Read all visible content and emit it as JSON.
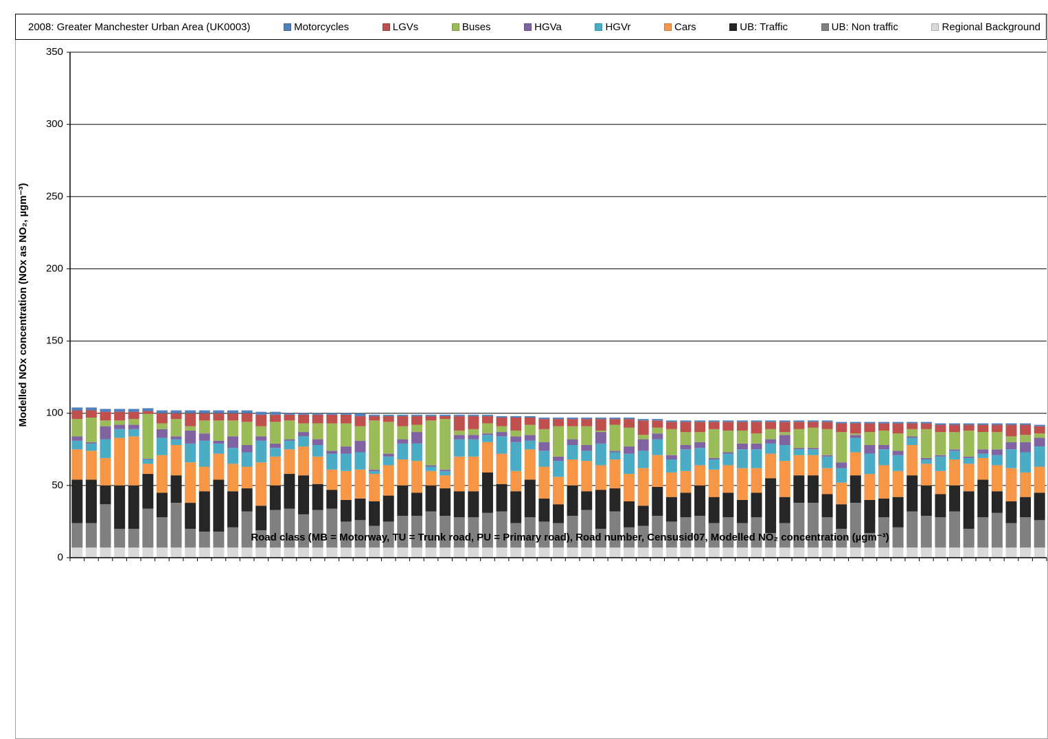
{
  "chart_data": {
    "type": "stacked_bar",
    "title": "2008: Greater Manchester Urban Area (UK0003)",
    "x_label": "Road class  (MB = Motorway, TU = Trunk road, PU = Primary road), Road number, Censusid07, Modelled NO₂ concentration (µgm⁻³)",
    "y_label": "Modelled NOx concentration  (NOx as NO₂, µgm⁻³)",
    "categories": [
      null,
      null,
      null,
      null,
      null,
      null,
      null,
      null,
      null,
      null,
      null,
      null,
      null,
      null,
      null,
      null,
      null,
      null,
      null,
      null,
      null,
      null,
      null,
      null,
      null,
      null,
      null,
      null,
      null,
      null,
      null,
      null,
      null,
      null,
      null,
      null,
      null,
      null,
      null,
      null,
      null,
      null,
      null,
      null,
      null,
      null,
      null,
      null,
      null,
      null,
      null,
      null,
      null,
      null,
      null,
      null,
      null,
      null,
      null,
      null,
      null,
      null,
      null,
      null,
      null,
      null,
      null,
      null,
      null
    ],
    "ylim": [
      0,
      350
    ],
    "yticks": [
      0,
      50,
      100,
      150,
      200,
      250,
      300,
      350
    ],
    "grid": true,
    "legend": "top",
    "series": [
      {
        "name": "Motorcycles",
        "color": "#4f81bd",
        "values": [
          2,
          2,
          2,
          2,
          2,
          2,
          2,
          2,
          2,
          2,
          2,
          2,
          2,
          2,
          2,
          1,
          1,
          1,
          1,
          1,
          2,
          1,
          1,
          1,
          1,
          1,
          1,
          1,
          1,
          1,
          1,
          1,
          1,
          1,
          1,
          1,
          1,
          1,
          1,
          1,
          1,
          1,
          1,
          1,
          1,
          1,
          1,
          1,
          1,
          1,
          1,
          1,
          1,
          1,
          1,
          1,
          1,
          1,
          1,
          1,
          1,
          1,
          1,
          1,
          1,
          1,
          1,
          1,
          1
        ]
      },
      {
        "name": "LGVs",
        "color": "#c0504d",
        "values": [
          6,
          5,
          6,
          6,
          5,
          2,
          7,
          4,
          9,
          5,
          5,
          5,
          6,
          8,
          5,
          4,
          6,
          6,
          6,
          6,
          7,
          3,
          4,
          7,
          6,
          3,
          2,
          10,
          9,
          5,
          6,
          9,
          5,
          7,
          5,
          5,
          5,
          8,
          4,
          6,
          10,
          5,
          5,
          7,
          7,
          5,
          6,
          6,
          8,
          5,
          7,
          5,
          4,
          5,
          6,
          7,
          6,
          5,
          7,
          4,
          4,
          5,
          5,
          4,
          5,
          5,
          8,
          7,
          5
        ]
      },
      {
        "name": "Buses",
        "color": "#9bbb59",
        "values": [
          12,
          17,
          4,
          3,
          4,
          31,
          4,
          12,
          3,
          9,
          14,
          11,
          16,
          7,
          15,
          13,
          6,
          11,
          19,
          16,
          10,
          34,
          22,
          9,
          5,
          31,
          35,
          3,
          4,
          7,
          4,
          4,
          7,
          9,
          21,
          9,
          13,
          1,
          18,
          13,
          3,
          4,
          18,
          9,
          7,
          20,
          15,
          9,
          7,
          7,
          2,
          13,
          14,
          18,
          21,
          1,
          9,
          10,
          12,
          5,
          20,
          16,
          12,
          18,
          12,
          12,
          4,
          5,
          3
        ]
      },
      {
        "name": "HGVa",
        "color": "#8064a2",
        "values": [
          3,
          1,
          9,
          3,
          3,
          0.5,
          6,
          2,
          9,
          5,
          2,
          8,
          5,
          3,
          3,
          1,
          3,
          4,
          2,
          5,
          8,
          1,
          2,
          3,
          8,
          1,
          1,
          3,
          3,
          1,
          3,
          4,
          4,
          6,
          3,
          4,
          4,
          8,
          1,
          5,
          8,
          4,
          3,
          3,
          4,
          1,
          1,
          4,
          4,
          3,
          7,
          1,
          1,
          1,
          4,
          2,
          6,
          3,
          3,
          1,
          1,
          1,
          1,
          1,
          3,
          4,
          5,
          7,
          6
        ]
      },
      {
        "name": "HGVr",
        "color": "#4bacc6",
        "values": [
          6,
          5,
          13,
          6,
          5,
          3,
          12,
          4,
          13,
          18,
          7,
          11,
          10,
          15,
          6,
          6,
          7,
          8,
          11,
          12,
          12,
          2,
          6,
          11,
          12,
          3,
          3,
          12,
          12,
          5,
          12,
          20,
          6,
          11,
          11,
          10,
          7,
          15,
          5,
          14,
          12,
          11,
          9,
          15,
          12,
          7,
          8,
          13,
          13,
          7,
          11,
          4,
          4,
          8,
          10,
          10,
          14,
          11,
          11,
          5,
          3,
          10,
          6,
          4,
          3,
          7,
          13,
          14,
          14
        ]
      },
      {
        "name": "Cars",
        "color": "#f79646",
        "values": [
          21,
          20,
          19,
          33,
          34,
          7,
          26,
          21,
          28,
          17,
          18,
          19,
          15,
          30,
          20,
          17,
          20,
          19,
          14,
          20,
          20,
          19,
          21,
          18,
          22,
          10,
          9,
          24,
          24,
          21,
          21,
          14,
          21,
          22,
          19,
          18,
          21,
          17,
          20,
          19,
          26,
          22,
          17,
          15,
          14,
          19,
          19,
          22,
          17,
          17,
          25,
          14,
          14,
          18,
          15,
          16,
          18,
          23,
          18,
          21,
          15,
          16,
          18,
          19,
          15,
          18,
          23,
          17,
          18
        ]
      },
      {
        "name": "UB: Traffic",
        "color": "#262626",
        "values": [
          30,
          30,
          13,
          30,
          30,
          24,
          17,
          19,
          18,
          28,
          36,
          25,
          16,
          17,
          17,
          24,
          27,
          18,
          13,
          15,
          15,
          17,
          18,
          21,
          16,
          18,
          19,
          18,
          18,
          28,
          19,
          22,
          26,
          16,
          13,
          21,
          13,
          27,
          16,
          18,
          14,
          20,
          17,
          17,
          21,
          18,
          17,
          16,
          17,
          38,
          18,
          19,
          19,
          16,
          17,
          19,
          23,
          13,
          21,
          25,
          21,
          16,
          18,
          26,
          26,
          15,
          15,
          14,
          19
        ]
      },
      {
        "name": "UB: Non traffic",
        "color": "#808080",
        "values": [
          17,
          17,
          30,
          13,
          13,
          27,
          21,
          31,
          13,
          11,
          11,
          14,
          25,
          12,
          26,
          27,
          23,
          26,
          27,
          18,
          19,
          15,
          18,
          22,
          22,
          25,
          22,
          21,
          21,
          24,
          25,
          17,
          21,
          18,
          17,
          22,
          26,
          13,
          25,
          14,
          15,
          22,
          18,
          21,
          22,
          17,
          21,
          17,
          21,
          10,
          17,
          31,
          31,
          21,
          13,
          31,
          10,
          21,
          14,
          25,
          22,
          21,
          25,
          13,
          21,
          24,
          17,
          21,
          19
        ]
      },
      {
        "name": "Regional Background",
        "color": "#d9d9d9",
        "values": [
          7,
          7,
          7,
          7,
          7,
          7,
          7,
          7,
          7,
          7,
          7,
          7,
          7,
          7,
          7,
          7,
          7,
          7,
          7,
          7,
          7,
          7,
          7,
          7,
          7,
          7,
          7,
          7,
          7,
          7,
          7,
          7,
          7,
          7,
          7,
          7,
          7,
          7,
          7,
          7,
          7,
          7,
          7,
          7,
          7,
          7,
          7,
          7,
          7,
          7,
          7,
          7,
          7,
          7,
          7,
          7,
          7,
          7,
          7,
          7,
          7,
          7,
          7,
          7,
          7,
          7,
          7,
          7,
          7
        ]
      }
    ]
  }
}
